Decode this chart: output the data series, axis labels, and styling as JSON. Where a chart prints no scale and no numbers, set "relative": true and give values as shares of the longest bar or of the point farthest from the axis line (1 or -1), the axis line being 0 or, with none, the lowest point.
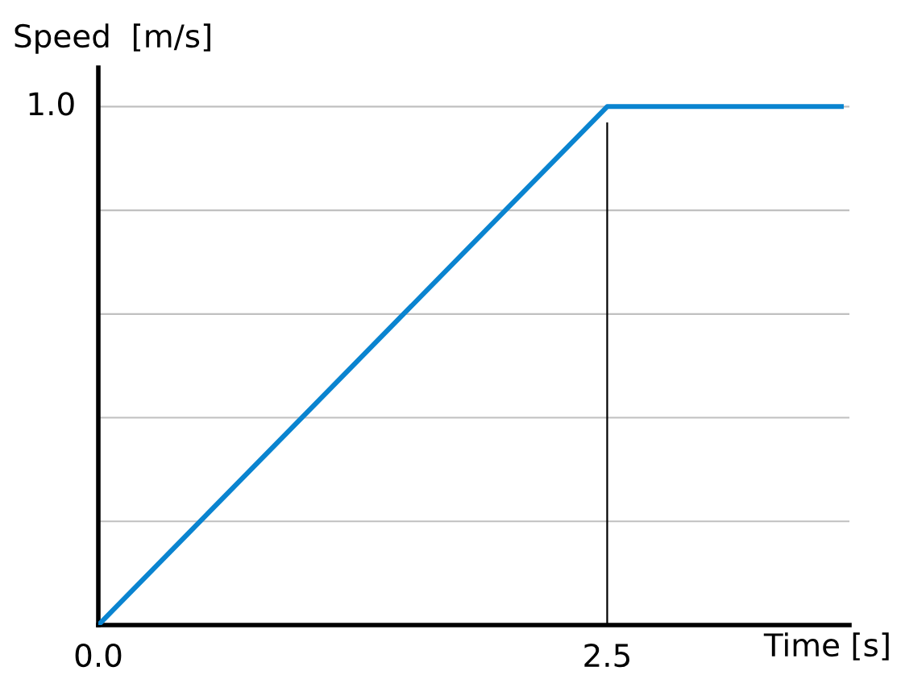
{
  "chart_data": {
    "type": "line",
    "xlabel": "Time [s]",
    "ylabel": "Speed  [m/s]",
    "x": [
      0,
      2.5,
      3.65
    ],
    "series": [
      {
        "color": "#0a84d0",
        "values": [
          0,
          1.0,
          1.0
        ]
      }
    ],
    "xlim": [
      0,
      3.69
    ],
    "relative": true,
    "annotations": [
      "1.0"
    ],
    "xticks": [
      {
        "value": 0,
        "label": "0.0"
      },
      2.5
    ],
    "grid": "y",
    "legend": false,
    "marker": "none",
    "line_style": "solid",
    "ref_lines": [
      {
        "axis": "x",
        "value": 2.5,
        "color": "#000000"
      }
    ]
  }
}
